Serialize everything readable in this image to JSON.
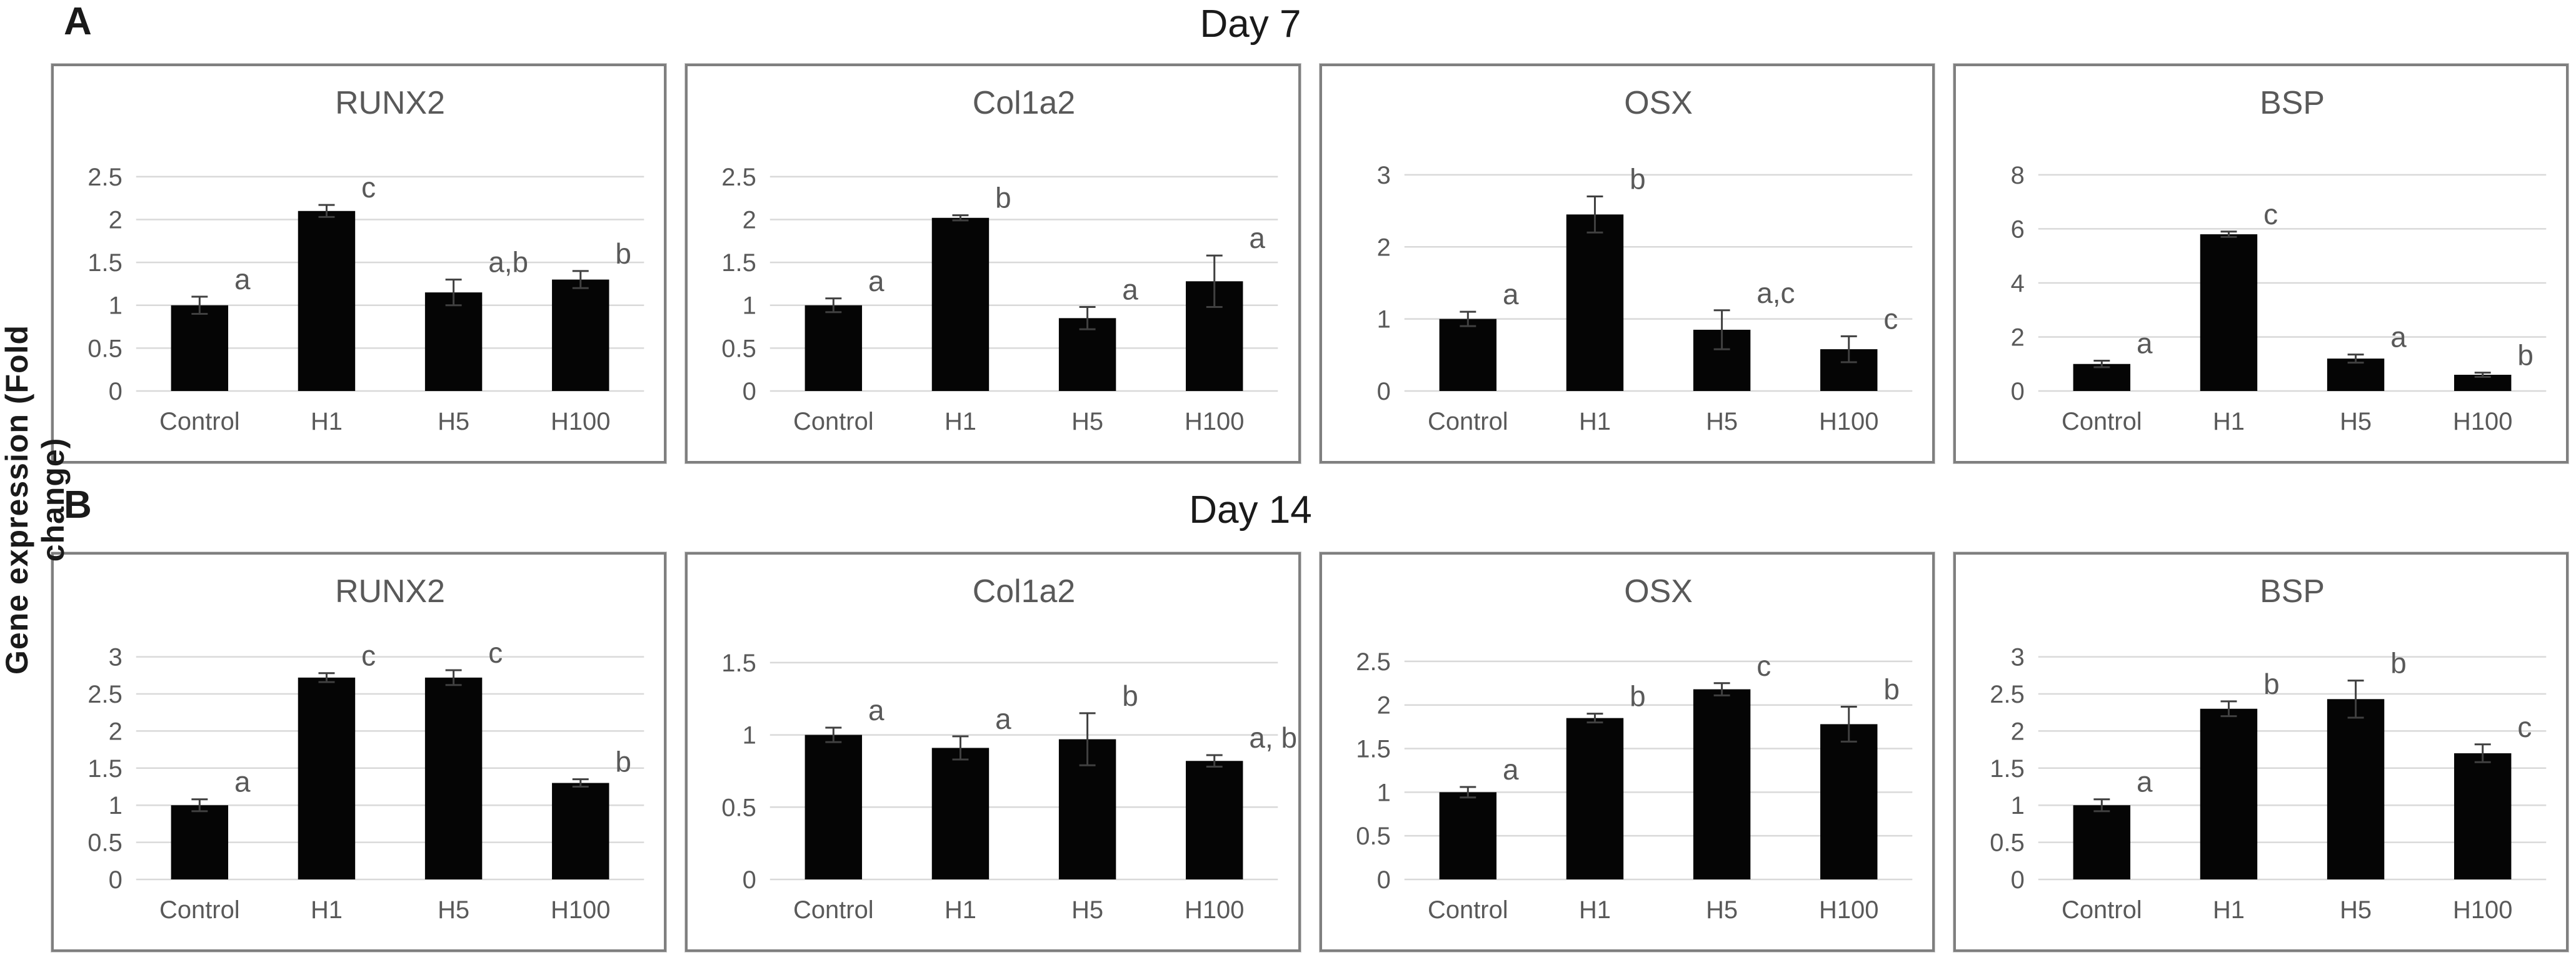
{
  "figure": {
    "y_axis_label": "Gene expression (Fold change)",
    "rows": [
      {
        "panel_letter": "A",
        "day_title": "Day 7"
      },
      {
        "panel_letter": "B",
        "day_title": "Day 14"
      }
    ]
  },
  "style_colors": {
    "bar": "#050505",
    "gridline": "#d9d9d9",
    "axis_text": "#595959",
    "title_text": "#595959",
    "sig_letter": "#595959",
    "error_bar": "#404040",
    "panel_border": "#7f7f7f",
    "day_title_text": "#1a1a1a"
  },
  "chart_data": [
    {
      "type": "bar",
      "panel": "A",
      "day": "Day 7",
      "title": "RUNX2",
      "categories": [
        "Control",
        "H1",
        "H5",
        "H100"
      ],
      "values": [
        1.0,
        2.1,
        1.15,
        1.3
      ],
      "errors": [
        0.1,
        0.07,
        0.15,
        0.1
      ],
      "sig_letters": [
        "a",
        "c",
        "a,b",
        "b"
      ],
      "yticks": [
        0,
        0.5,
        1,
        1.5,
        2,
        2.5
      ],
      "ylim": [
        0,
        2.9
      ],
      "xlabel": "",
      "ylabel": "",
      "grid": true,
      "legend": "none"
    },
    {
      "type": "bar",
      "panel": "A",
      "day": "Day 7",
      "title": "Col1a2",
      "categories": [
        "Control",
        "H1",
        "H5",
        "H100"
      ],
      "values": [
        1.0,
        2.02,
        0.85,
        1.28
      ],
      "errors": [
        0.08,
        0.03,
        0.13,
        0.3
      ],
      "sig_letters": [
        "a",
        "b",
        "a",
        "a"
      ],
      "yticks": [
        0,
        0.5,
        1,
        1.5,
        2,
        2.5
      ],
      "ylim": [
        0,
        2.9
      ],
      "xlabel": "",
      "ylabel": "",
      "grid": true,
      "legend": "none"
    },
    {
      "type": "bar",
      "panel": "A",
      "day": "Day 7",
      "title": "OSX",
      "categories": [
        "Control",
        "H1",
        "H5",
        "H100"
      ],
      "values": [
        1.0,
        2.45,
        0.85,
        0.58
      ],
      "errors": [
        0.1,
        0.25,
        0.27,
        0.18
      ],
      "sig_letters": [
        "a",
        "b",
        "a,c",
        "c"
      ],
      "yticks": [
        0,
        1,
        2,
        3
      ],
      "ylim": [
        0,
        3.45
      ],
      "xlabel": "",
      "ylabel": "",
      "grid": true,
      "legend": "none"
    },
    {
      "type": "bar",
      "panel": "A",
      "day": "Day 7",
      "title": "BSP",
      "categories": [
        "Control",
        "H1",
        "H5",
        "H100"
      ],
      "values": [
        1.0,
        5.8,
        1.2,
        0.6
      ],
      "errors": [
        0.12,
        0.1,
        0.15,
        0.08
      ],
      "sig_letters": [
        "a",
        "c",
        "a",
        "b"
      ],
      "yticks": [
        0,
        2,
        4,
        6,
        8
      ],
      "ylim": [
        0,
        9.2
      ],
      "xlabel": "",
      "ylabel": "",
      "grid": true,
      "legend": "none"
    },
    {
      "type": "bar",
      "panel": "B",
      "day": "Day 14",
      "title": "RUNX2",
      "categories": [
        "Control",
        "H1",
        "H5",
        "H100"
      ],
      "values": [
        1.0,
        2.72,
        2.72,
        1.3
      ],
      "errors": [
        0.08,
        0.06,
        0.1,
        0.05
      ],
      "sig_letters": [
        "a",
        "c",
        "c",
        "b"
      ],
      "yticks": [
        0,
        0.5,
        1,
        1.5,
        2,
        2.5,
        3
      ],
      "ylim": [
        0,
        3.35
      ],
      "xlabel": "",
      "ylabel": "",
      "grid": true,
      "legend": "none"
    },
    {
      "type": "bar",
      "panel": "B",
      "day": "Day 14",
      "title": "Col1a2",
      "categories": [
        "Control",
        "H1",
        "H5",
        "H100"
      ],
      "values": [
        1.0,
        0.91,
        0.97,
        0.82
      ],
      "errors": [
        0.05,
        0.08,
        0.18,
        0.04
      ],
      "sig_letters": [
        "a",
        "a",
        "b",
        "a, b"
      ],
      "yticks": [
        0,
        0.5,
        1,
        1.5
      ],
      "ylim": [
        0,
        1.72
      ],
      "xlabel": "",
      "ylabel": "",
      "grid": true,
      "legend": "none"
    },
    {
      "type": "bar",
      "panel": "B",
      "day": "Day 14",
      "title": "OSX",
      "categories": [
        "Control",
        "H1",
        "H5",
        "H100"
      ],
      "values": [
        1.0,
        1.85,
        2.18,
        1.78
      ],
      "errors": [
        0.06,
        0.05,
        0.07,
        0.2
      ],
      "sig_letters": [
        "a",
        "b",
        "c",
        "b"
      ],
      "yticks": [
        0,
        0.5,
        1,
        1.5,
        2,
        2.5
      ],
      "ylim": [
        0,
        2.85
      ],
      "xlabel": "",
      "ylabel": "",
      "grid": true,
      "legend": "none"
    },
    {
      "type": "bar",
      "panel": "B",
      "day": "Day 14",
      "title": "BSP",
      "categories": [
        "Control",
        "H1",
        "H5",
        "H100"
      ],
      "values": [
        1.0,
        2.3,
        2.43,
        1.7
      ],
      "errors": [
        0.08,
        0.1,
        0.25,
        0.12
      ],
      "sig_letters": [
        "a",
        "b",
        "b",
        "c"
      ],
      "yticks": [
        0,
        0.5,
        1,
        1.5,
        2,
        2.5,
        3
      ],
      "ylim": [
        0,
        3.35
      ],
      "xlabel": "",
      "ylabel": "",
      "grid": true,
      "legend": "none"
    }
  ]
}
